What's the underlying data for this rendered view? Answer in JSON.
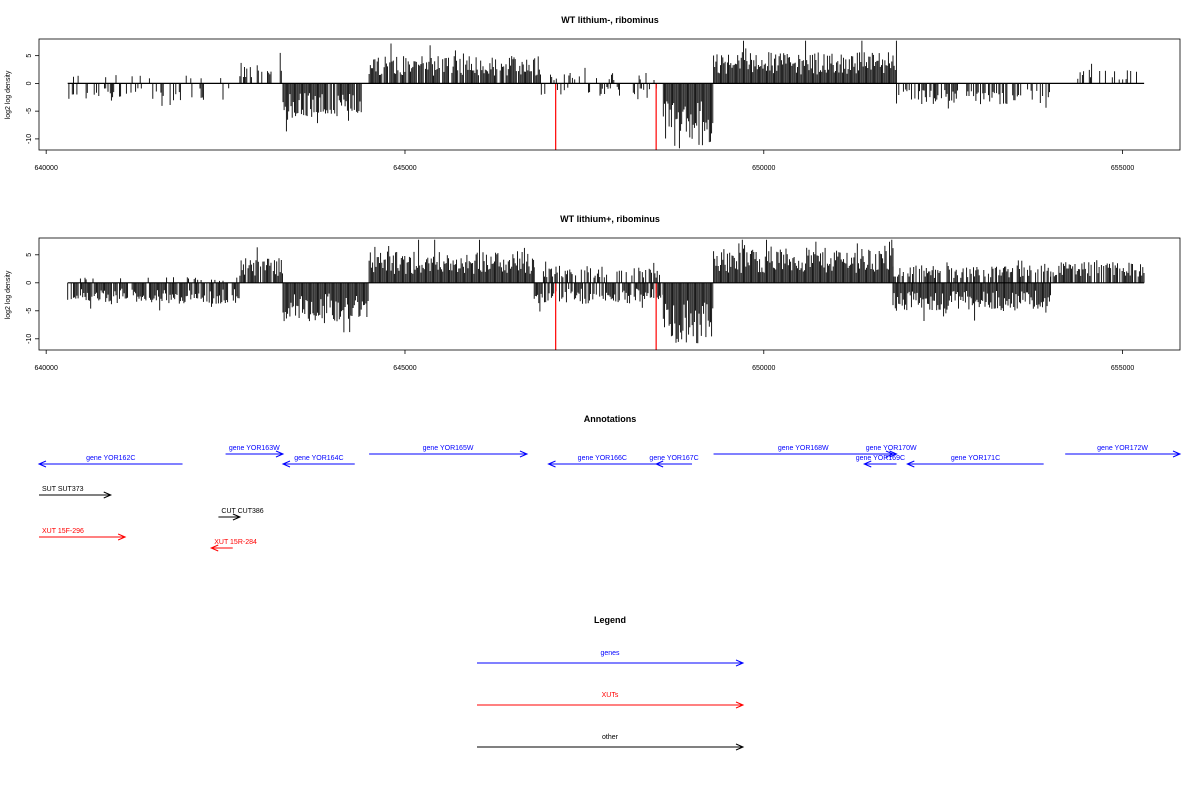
{
  "chart_data": [
    {
      "type": "bar",
      "title": "WT lithium-, ribominus",
      "ylabel": "log2 log density",
      "xlim": [
        639900,
        655800
      ],
      "ylim": [
        -12,
        8
      ],
      "x_ticks": [
        640000,
        645000,
        650000,
        655000
      ],
      "y_ticks": [
        -10,
        -5,
        0,
        5
      ],
      "data_range": [
        640300,
        655300
      ],
      "segments": [
        {
          "from": 640300,
          "to": 642600,
          "dir": -1,
          "level": 2.5,
          "density": 0.28
        },
        {
          "from": 640300,
          "to": 642600,
          "dir": 1,
          "level": 1.2,
          "density": 0.1
        },
        {
          "from": 642700,
          "to": 643300,
          "dir": 1,
          "level": 3.0,
          "density": 0.4
        },
        {
          "from": 643300,
          "to": 644400,
          "dir": -1,
          "level": 5.0,
          "density": 0.95
        },
        {
          "from": 644500,
          "to": 646900,
          "dir": 1,
          "level": 4.0,
          "density": 0.9
        },
        {
          "from": 646900,
          "to": 648600,
          "dir": -1,
          "level": 1.8,
          "density": 0.25
        },
        {
          "from": 646900,
          "to": 648600,
          "dir": 1,
          "level": 1.6,
          "density": 0.2
        },
        {
          "from": 648600,
          "to": 649300,
          "dir": -1,
          "level": 9.0,
          "density": 1.0
        },
        {
          "from": 649300,
          "to": 651850,
          "dir": 1,
          "level": 4.5,
          "density": 1.0
        },
        {
          "from": 651850,
          "to": 654000,
          "dir": -1,
          "level": 3.0,
          "density": 0.55
        },
        {
          "from": 654200,
          "to": 655300,
          "dir": 1,
          "level": 2.0,
          "density": 0.3
        }
      ],
      "red_marks": [
        647100,
        648500
      ],
      "red_depth": -12
    },
    {
      "type": "bar",
      "title": "WT lithium+, ribominus",
      "ylabel": "log2 log density",
      "xlim": [
        639900,
        655800
      ],
      "ylim": [
        -12,
        8
      ],
      "x_ticks": [
        640000,
        645000,
        650000,
        655000
      ],
      "y_ticks": [
        -10,
        -5,
        0,
        5
      ],
      "data_range": [
        640300,
        655300
      ],
      "segments": [
        {
          "from": 640300,
          "to": 642700,
          "dir": -1,
          "level": 3.0,
          "density": 0.9
        },
        {
          "from": 640300,
          "to": 642700,
          "dir": 1,
          "level": 0.8,
          "density": 0.15
        },
        {
          "from": 642700,
          "to": 643300,
          "dir": 1,
          "level": 3.5,
          "density": 0.9
        },
        {
          "from": 643300,
          "to": 644500,
          "dir": -1,
          "level": 5.5,
          "density": 1.0
        },
        {
          "from": 644500,
          "to": 646800,
          "dir": 1,
          "level": 4.5,
          "density": 1.0
        },
        {
          "from": 646800,
          "to": 648600,
          "dir": -1,
          "level": 3.0,
          "density": 0.8
        },
        {
          "from": 646800,
          "to": 648600,
          "dir": 1,
          "level": 2.5,
          "density": 0.5
        },
        {
          "from": 648600,
          "to": 649300,
          "dir": -1,
          "level": 9.0,
          "density": 1.0
        },
        {
          "from": 649300,
          "to": 651800,
          "dir": 1,
          "level": 5.0,
          "density": 1.0
        },
        {
          "from": 651800,
          "to": 654000,
          "dir": -1,
          "level": 4.0,
          "density": 1.0
        },
        {
          "from": 651800,
          "to": 654000,
          "dir": 1,
          "level": 2.5,
          "density": 0.7
        },
        {
          "from": 654000,
          "to": 655300,
          "dir": 1,
          "level": 3.0,
          "density": 0.9
        }
      ],
      "red_marks": [
        647100,
        648500
      ],
      "red_depth": -12
    }
  ],
  "annotations": {
    "title": "Annotations",
    "items": [
      {
        "label": "gene YOR162C",
        "from": 641900,
        "to": 639900,
        "row": 2,
        "color": "#0000ff"
      },
      {
        "label": "gene YOR163W",
        "from": 642500,
        "to": 643300,
        "row": 1,
        "color": "#0000ff"
      },
      {
        "label": "gene YOR164C",
        "from": 644300,
        "to": 643300,
        "row": 2,
        "color": "#0000ff"
      },
      {
        "label": "gene YOR165W",
        "from": 644500,
        "to": 646700,
        "row": 1,
        "color": "#0000ff"
      },
      {
        "label": "gene YOR166C",
        "from": 648500,
        "to": 647000,
        "row": 2,
        "color": "#0000ff"
      },
      {
        "label": "gene YOR167C",
        "from": 649000,
        "to": 648500,
        "row": 2,
        "color": "#0000ff"
      },
      {
        "label": "gene YOR168W",
        "from": 649300,
        "to": 651800,
        "row": 1,
        "color": "#0000ff"
      },
      {
        "label": "gene YOR170W",
        "from": 651700,
        "to": 651850,
        "row": 1,
        "color": "#0000ff"
      },
      {
        "label": "gene YOR169C",
        "from": 651850,
        "to": 651400,
        "row": 2,
        "color": "#0000ff"
      },
      {
        "label": "gene YOR171C",
        "from": 653900,
        "to": 652000,
        "row": 2,
        "color": "#0000ff"
      },
      {
        "label": "gene YOR172W",
        "from": 654200,
        "to": 655800,
        "row": 1,
        "color": "#0000ff"
      },
      {
        "label": "SUT SUT373",
        "from": 639900,
        "to": 640900,
        "row": 3,
        "color": "#000000"
      },
      {
        "label": "CUT CUT386",
        "from": 642400,
        "to": 642700,
        "row": 4,
        "color": "#000000"
      },
      {
        "label": "XUT 15F-296",
        "from": 639900,
        "to": 641100,
        "row": 5,
        "color": "#ff0000"
      },
      {
        "label": "XUT 15R-284",
        "from": 642600,
        "to": 642300,
        "row": 6,
        "color": "#ff0000"
      }
    ]
  },
  "legend": {
    "title": "Legend",
    "items": [
      {
        "label": "genes",
        "color": "#0000ff"
      },
      {
        "label": "XUTs",
        "color": "#ff0000"
      },
      {
        "label": "other",
        "color": "#000000"
      }
    ]
  }
}
